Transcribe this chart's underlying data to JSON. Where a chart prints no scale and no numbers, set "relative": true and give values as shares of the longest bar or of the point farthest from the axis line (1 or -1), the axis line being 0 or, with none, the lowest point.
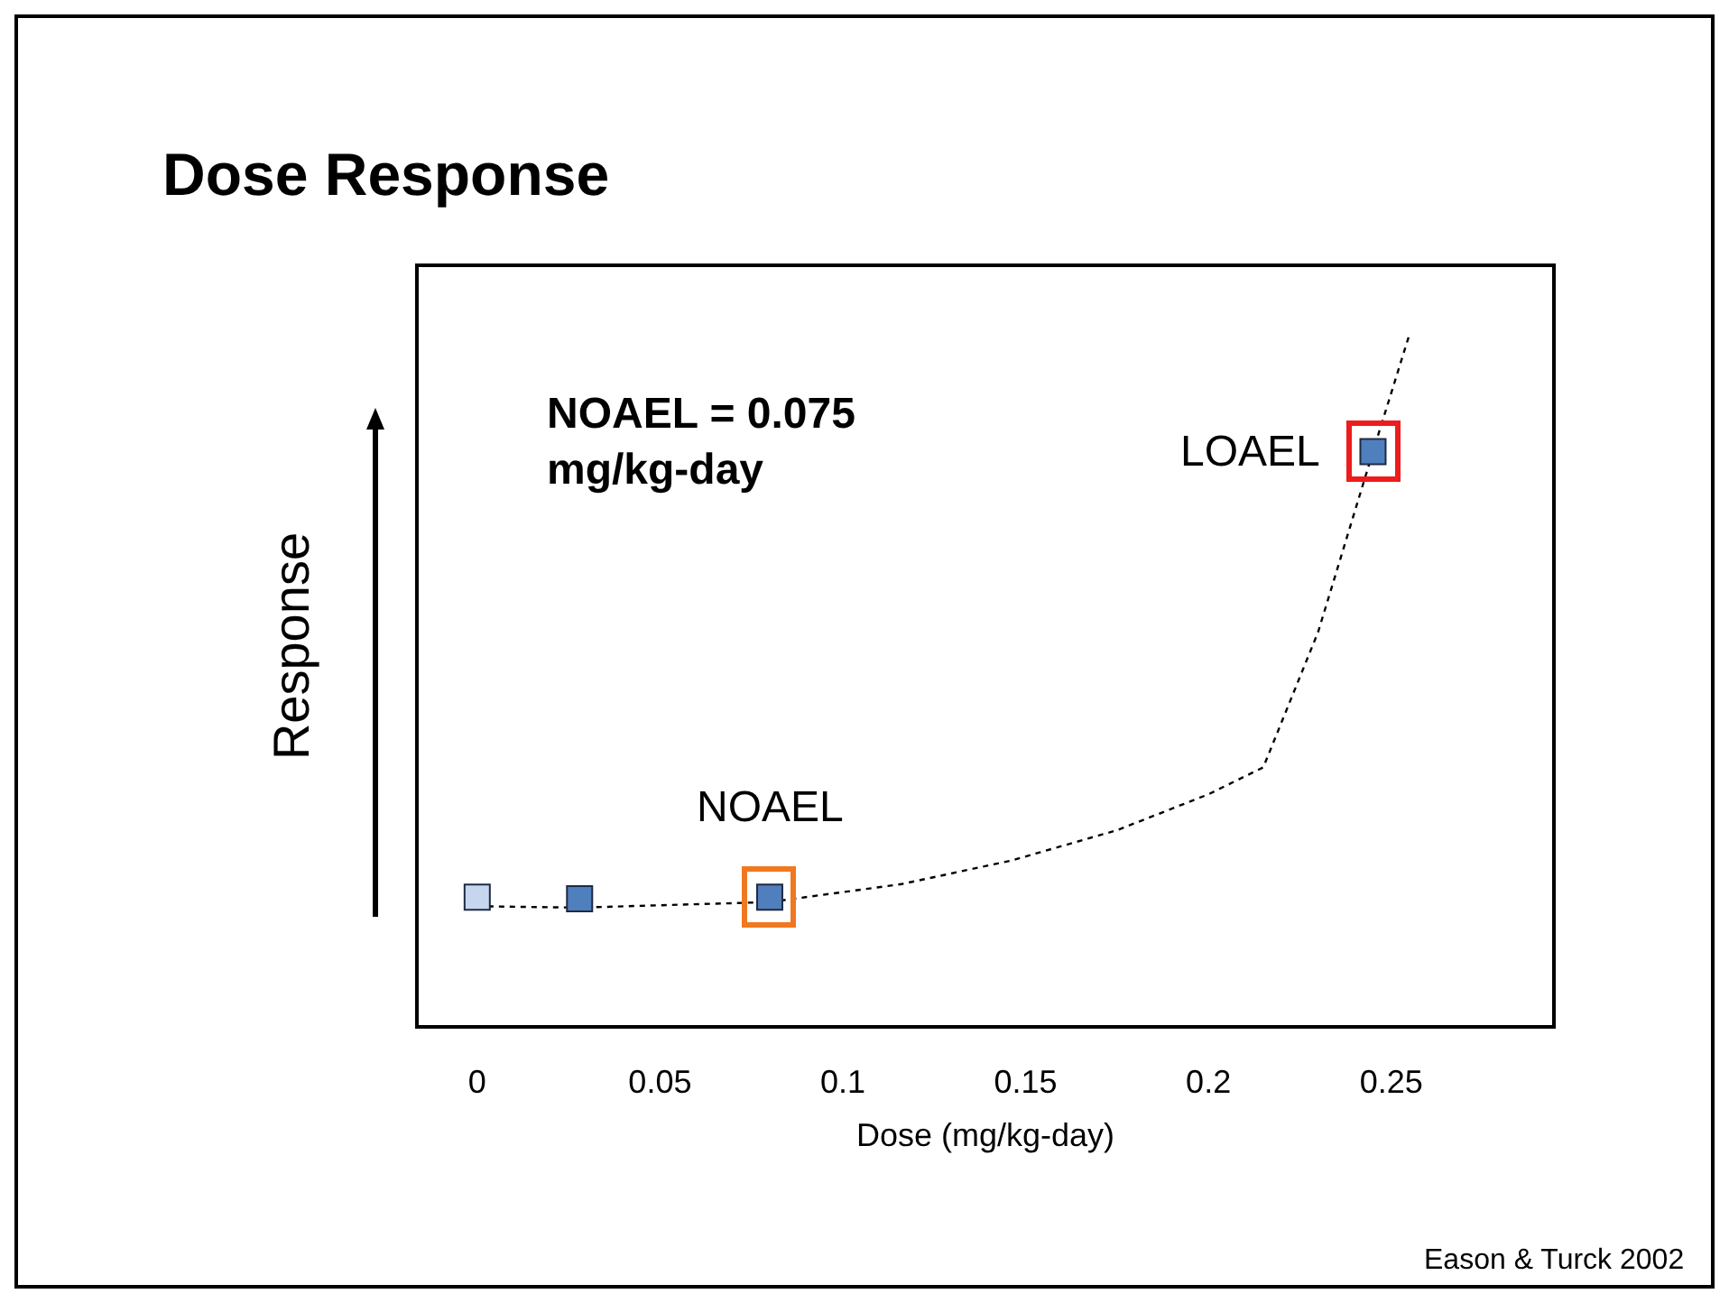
{
  "chart_data": {
    "type": "scatter",
    "title": "Dose Response",
    "xlabel": "Dose (mg/kg-day)",
    "ylabel": "Response",
    "relative": true,
    "grid": false,
    "xlim": [
      -0.016,
      0.294
    ],
    "xticks": [
      0,
      0.05,
      0.1,
      0.15,
      0.2,
      0.25
    ],
    "series": [
      {
        "type": "line",
        "color": "#000000",
        "line_style": "dotted",
        "marker": "none",
        "x": [
          0,
          0.028,
          0.08,
          0.116,
          0.146,
          0.175,
          0.2,
          0.215,
          0.23,
          0.245,
          0.255
        ],
        "values": [
          0.172,
          0.17,
          0.178,
          0.204,
          0.238,
          0.282,
          0.334,
          0.373,
          0.569,
          0.83,
          1
        ]
      },
      {
        "marker": "square",
        "colors": [
          "#c6d6ec",
          "#4f7fbd",
          "#4f7fbd",
          "#4f7fbd"
        ],
        "x": [
          0,
          0.028,
          0.08,
          0.245
        ],
        "values": [
          0.185,
          0.183,
          0.185,
          0.83
        ]
      }
    ],
    "annotations": [
      "NOAEL = 0.075\nmg/kg-day",
      {
        "text": "NOAEL",
        "x": 0.08,
        "y": 0.185
      },
      {
        "text": "LOAEL",
        "x": 0.245,
        "y": 0.83
      },
      "Eason & Turck 2002"
    ]
  }
}
